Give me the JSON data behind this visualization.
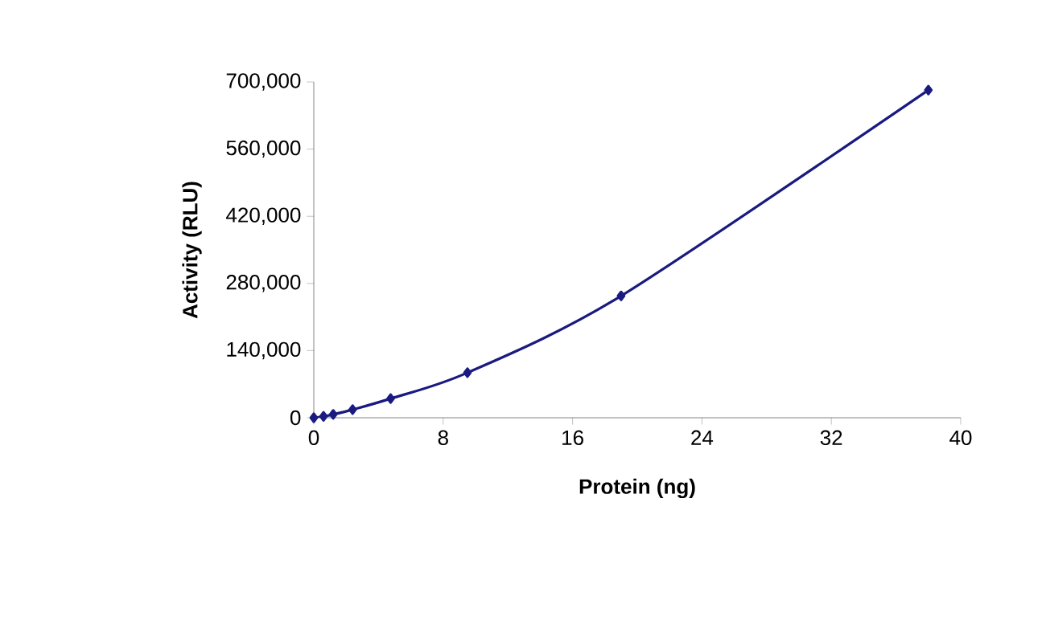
{
  "chart_data": {
    "type": "line",
    "xlabel": "Protein (ng)",
    "ylabel": "Activity (RLU)",
    "x": [
      0,
      0.6,
      1.2,
      2.4,
      4.75,
      9.5,
      19,
      38
    ],
    "series": [
      {
        "color": "#1a1a80",
        "values": [
          0,
          3000,
          7000,
          17000,
          40000,
          94000,
          254000,
          683000
        ]
      }
    ],
    "xlim": [
      0,
      40
    ],
    "xticks": [
      0,
      8,
      16,
      24,
      32,
      40
    ],
    "ylim": [
      0,
      700000
    ],
    "yticks": [
      0,
      {
        "value": 140000,
        "label": "140,000"
      },
      {
        "value": 280000,
        "label": "280,000"
      },
      {
        "value": 420000,
        "label": "420,000"
      },
      {
        "value": 560000,
        "label": "560,000"
      },
      {
        "value": 700000,
        "label": "700,000"
      }
    ],
    "marker": "diamond",
    "line_style": "solid"
  }
}
